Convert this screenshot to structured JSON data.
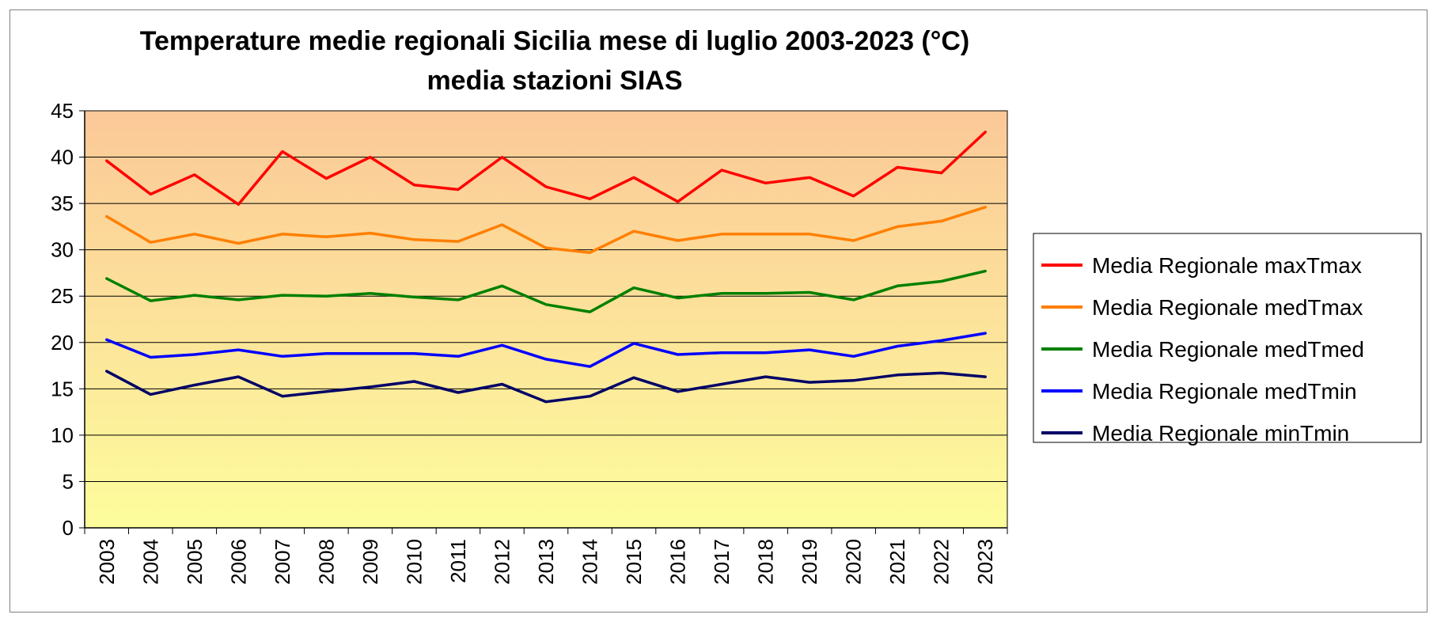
{
  "chart_data": {
    "type": "line",
    "title": "Temperature medie regionali Sicilia mese di luglio 2003-2023 (°C)",
    "subtitle": "media stazioni SIAS",
    "xlabel": "",
    "ylabel": "",
    "ylim": [
      0,
      45
    ],
    "yticks": [
      0,
      5,
      10,
      15,
      20,
      25,
      30,
      35,
      40,
      45
    ],
    "grid": true,
    "legend_position": "right",
    "plot_background": "gradient #FDFD9C (bottom) to #FBC898 (top)",
    "categories": [
      "2003",
      "2004",
      "2005",
      "2006",
      "2007",
      "2008",
      "2009",
      "2010",
      "2011",
      "2012",
      "2013",
      "2014",
      "2015",
      "2016",
      "2017",
      "2018",
      "2019",
      "2020",
      "2021",
      "2022",
      "2023"
    ],
    "series": [
      {
        "name": "Media Regionale maxTmax",
        "color": "#FF0000",
        "values": [
          39.6,
          36.0,
          38.1,
          34.9,
          40.6,
          37.7,
          40.0,
          37.0,
          36.5,
          40.0,
          36.8,
          35.5,
          37.8,
          35.2,
          38.6,
          37.2,
          37.8,
          35.8,
          38.9,
          38.3,
          42.7
        ]
      },
      {
        "name": "Media Regionale medTmax",
        "color": "#FF7F00",
        "values": [
          33.6,
          30.8,
          31.7,
          30.7,
          31.7,
          31.4,
          31.8,
          31.1,
          30.9,
          32.7,
          30.2,
          29.7,
          32.0,
          31.0,
          31.7,
          31.7,
          31.7,
          31.0,
          32.5,
          33.1,
          34.6
        ]
      },
      {
        "name": "Media Regionale medTmed",
        "color": "#008000",
        "values": [
          26.9,
          24.5,
          25.1,
          24.6,
          25.1,
          25.0,
          25.3,
          24.9,
          24.6,
          26.1,
          24.1,
          23.3,
          25.9,
          24.8,
          25.3,
          25.3,
          25.4,
          24.6,
          26.1,
          26.6,
          27.7
        ]
      },
      {
        "name": "Media Regionale medTmin",
        "color": "#0000FF",
        "values": [
          20.3,
          18.4,
          18.7,
          19.2,
          18.5,
          18.8,
          18.8,
          18.8,
          18.5,
          19.7,
          18.2,
          17.4,
          19.9,
          18.7,
          18.9,
          18.9,
          19.2,
          18.5,
          19.6,
          20.2,
          21.0
        ]
      },
      {
        "name": "Media Regionale minTmin",
        "color": "#000066",
        "values": [
          16.9,
          14.4,
          15.4,
          16.3,
          14.2,
          14.7,
          15.2,
          15.8,
          14.6,
          15.5,
          13.6,
          14.2,
          16.2,
          14.7,
          15.5,
          16.3,
          15.7,
          15.9,
          16.5,
          16.7,
          16.3
        ]
      }
    ]
  }
}
